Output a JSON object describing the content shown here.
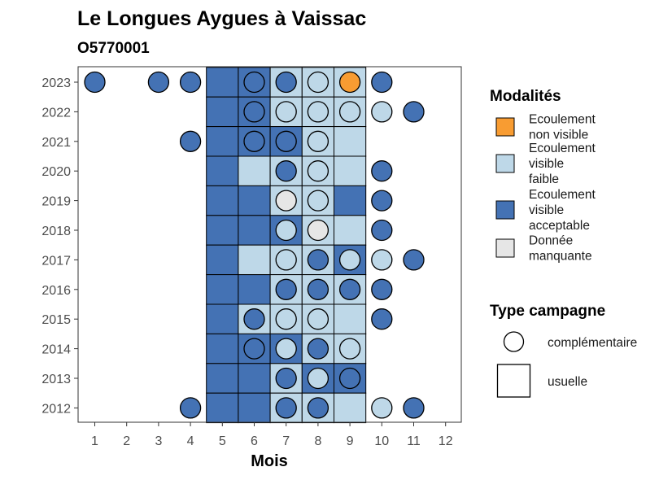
{
  "chart_data": {
    "type": "heatmap",
    "title": "Le Longues Aygues à Vaissac",
    "subtitle": "O5770001",
    "xlabel": "Mois",
    "ylabel": "",
    "x_ticks": [
      1,
      2,
      3,
      4,
      5,
      6,
      7,
      8,
      9,
      10,
      11,
      12
    ],
    "y_ticks": [
      2012,
      2013,
      2014,
      2015,
      2016,
      2017,
      2018,
      2019,
      2020,
      2021,
      2022,
      2023
    ],
    "xlim": [
      0.5,
      12.5
    ],
    "ylim": [
      2011.5,
      2023.5
    ],
    "grid": false,
    "colors": {
      "nonvisible": "#f89c32",
      "faible": "#bed8e8",
      "acceptable": "#4472b4",
      "manquante": "#e6e6e6"
    },
    "legend": {
      "placement": "right",
      "modalites_title": "Modalités",
      "modalites": [
        {
          "key": "nonvisible",
          "lines": [
            "Ecoulement",
            "non visible"
          ]
        },
        {
          "key": "faible",
          "lines": [
            "Ecoulement",
            "visible",
            "faible"
          ]
        },
        {
          "key": "acceptable",
          "lines": [
            "Ecoulement",
            "visible",
            "acceptable"
          ]
        },
        {
          "key": "manquante",
          "lines": [
            "Donnée",
            "manquante"
          ]
        }
      ],
      "campagne_title": "Type campagne",
      "campagnes": [
        {
          "key": "complementaire",
          "label": "complémentaire"
        },
        {
          "key": "usuelle",
          "label": "usuelle"
        }
      ]
    },
    "tiles": [
      {
        "year": 2023,
        "month": 5,
        "value": "acceptable"
      },
      {
        "year": 2023,
        "month": 6,
        "value": "acceptable"
      },
      {
        "year": 2023,
        "month": 7,
        "value": "faible"
      },
      {
        "year": 2023,
        "month": 8,
        "value": "faible"
      },
      {
        "year": 2023,
        "month": 9,
        "value": "faible"
      },
      {
        "year": 2022,
        "month": 5,
        "value": "acceptable"
      },
      {
        "year": 2022,
        "month": 6,
        "value": "acceptable"
      },
      {
        "year": 2022,
        "month": 7,
        "value": "faible"
      },
      {
        "year": 2022,
        "month": 8,
        "value": "faible"
      },
      {
        "year": 2022,
        "month": 9,
        "value": "faible"
      },
      {
        "year": 2021,
        "month": 5,
        "value": "acceptable"
      },
      {
        "year": 2021,
        "month": 6,
        "value": "acceptable"
      },
      {
        "year": 2021,
        "month": 7,
        "value": "acceptable"
      },
      {
        "year": 2021,
        "month": 8,
        "value": "faible"
      },
      {
        "year": 2021,
        "month": 9,
        "value": "faible"
      },
      {
        "year": 2020,
        "month": 5,
        "value": "acceptable"
      },
      {
        "year": 2020,
        "month": 6,
        "value": "faible"
      },
      {
        "year": 2020,
        "month": 7,
        "value": "faible"
      },
      {
        "year": 2020,
        "month": 8,
        "value": "faible"
      },
      {
        "year": 2020,
        "month": 9,
        "value": "faible"
      },
      {
        "year": 2019,
        "month": 5,
        "value": "acceptable"
      },
      {
        "year": 2019,
        "month": 6,
        "value": "acceptable"
      },
      {
        "year": 2019,
        "month": 7,
        "value": "faible"
      },
      {
        "year": 2019,
        "month": 8,
        "value": "faible"
      },
      {
        "year": 2019,
        "month": 9,
        "value": "acceptable"
      },
      {
        "year": 2018,
        "month": 5,
        "value": "acceptable"
      },
      {
        "year": 2018,
        "month": 6,
        "value": "acceptable"
      },
      {
        "year": 2018,
        "month": 7,
        "value": "acceptable"
      },
      {
        "year": 2018,
        "month": 8,
        "value": "faible"
      },
      {
        "year": 2018,
        "month": 9,
        "value": "faible"
      },
      {
        "year": 2017,
        "month": 5,
        "value": "acceptable"
      },
      {
        "year": 2017,
        "month": 6,
        "value": "faible"
      },
      {
        "year": 2017,
        "month": 7,
        "value": "faible"
      },
      {
        "year": 2017,
        "month": 8,
        "value": "faible"
      },
      {
        "year": 2017,
        "month": 9,
        "value": "acceptable"
      },
      {
        "year": 2016,
        "month": 5,
        "value": "acceptable"
      },
      {
        "year": 2016,
        "month": 6,
        "value": "acceptable"
      },
      {
        "year": 2016,
        "month": 7,
        "value": "faible"
      },
      {
        "year": 2016,
        "month": 8,
        "value": "faible"
      },
      {
        "year": 2016,
        "month": 9,
        "value": "faible"
      },
      {
        "year": 2015,
        "month": 5,
        "value": "acceptable"
      },
      {
        "year": 2015,
        "month": 6,
        "value": "faible"
      },
      {
        "year": 2015,
        "month": 7,
        "value": "faible"
      },
      {
        "year": 2015,
        "month": 8,
        "value": "faible"
      },
      {
        "year": 2015,
        "month": 9,
        "value": "faible"
      },
      {
        "year": 2014,
        "month": 5,
        "value": "acceptable"
      },
      {
        "year": 2014,
        "month": 6,
        "value": "acceptable"
      },
      {
        "year": 2014,
        "month": 7,
        "value": "acceptable"
      },
      {
        "year": 2014,
        "month": 8,
        "value": "faible"
      },
      {
        "year": 2014,
        "month": 9,
        "value": "faible"
      },
      {
        "year": 2013,
        "month": 5,
        "value": "acceptable"
      },
      {
        "year": 2013,
        "month": 6,
        "value": "acceptable"
      },
      {
        "year": 2013,
        "month": 7,
        "value": "faible"
      },
      {
        "year": 2013,
        "month": 8,
        "value": "acceptable"
      },
      {
        "year": 2013,
        "month": 9,
        "value": "acceptable"
      },
      {
        "year": 2012,
        "month": 5,
        "value": "acceptable"
      },
      {
        "year": 2012,
        "month": 6,
        "value": "acceptable"
      },
      {
        "year": 2012,
        "month": 7,
        "value": "faible"
      },
      {
        "year": 2012,
        "month": 8,
        "value": "faible"
      },
      {
        "year": 2012,
        "month": 9,
        "value": "faible"
      }
    ],
    "points": [
      {
        "year": 2023,
        "month": 1,
        "value": "acceptable"
      },
      {
        "year": 2023,
        "month": 3,
        "value": "acceptable"
      },
      {
        "year": 2023,
        "month": 4,
        "value": "acceptable"
      },
      {
        "year": 2023,
        "month": 6,
        "value": "acceptable"
      },
      {
        "year": 2023,
        "month": 7,
        "value": "acceptable"
      },
      {
        "year": 2023,
        "month": 8,
        "value": "faible"
      },
      {
        "year": 2023,
        "month": 9,
        "value": "nonvisible"
      },
      {
        "year": 2023,
        "month": 10,
        "value": "acceptable"
      },
      {
        "year": 2022,
        "month": 6,
        "value": "acceptable"
      },
      {
        "year": 2022,
        "month": 7,
        "value": "faible"
      },
      {
        "year": 2022,
        "month": 8,
        "value": "faible"
      },
      {
        "year": 2022,
        "month": 9,
        "value": "faible"
      },
      {
        "year": 2022,
        "month": 10,
        "value": "faible"
      },
      {
        "year": 2022,
        "month": 11,
        "value": "acceptable"
      },
      {
        "year": 2021,
        "month": 4,
        "value": "acceptable"
      },
      {
        "year": 2021,
        "month": 6,
        "value": "acceptable"
      },
      {
        "year": 2021,
        "month": 7,
        "value": "acceptable"
      },
      {
        "year": 2021,
        "month": 8,
        "value": "faible"
      },
      {
        "year": 2020,
        "month": 7,
        "value": "acceptable"
      },
      {
        "year": 2020,
        "month": 8,
        "value": "faible"
      },
      {
        "year": 2020,
        "month": 10,
        "value": "acceptable"
      },
      {
        "year": 2019,
        "month": 7,
        "value": "manquante"
      },
      {
        "year": 2019,
        "month": 8,
        "value": "faible"
      },
      {
        "year": 2019,
        "month": 10,
        "value": "acceptable"
      },
      {
        "year": 2018,
        "month": 7,
        "value": "faible"
      },
      {
        "year": 2018,
        "month": 8,
        "value": "manquante"
      },
      {
        "year": 2018,
        "month": 10,
        "value": "acceptable"
      },
      {
        "year": 2017,
        "month": 7,
        "value": "faible"
      },
      {
        "year": 2017,
        "month": 8,
        "value": "acceptable"
      },
      {
        "year": 2017,
        "month": 9,
        "value": "faible"
      },
      {
        "year": 2017,
        "month": 10,
        "value": "faible"
      },
      {
        "year": 2017,
        "month": 11,
        "value": "acceptable"
      },
      {
        "year": 2016,
        "month": 7,
        "value": "acceptable"
      },
      {
        "year": 2016,
        "month": 8,
        "value": "acceptable"
      },
      {
        "year": 2016,
        "month": 9,
        "value": "acceptable"
      },
      {
        "year": 2016,
        "month": 10,
        "value": "acceptable"
      },
      {
        "year": 2015,
        "month": 6,
        "value": "acceptable"
      },
      {
        "year": 2015,
        "month": 7,
        "value": "faible"
      },
      {
        "year": 2015,
        "month": 8,
        "value": "faible"
      },
      {
        "year": 2015,
        "month": 10,
        "value": "acceptable"
      },
      {
        "year": 2014,
        "month": 6,
        "value": "acceptable"
      },
      {
        "year": 2014,
        "month": 7,
        "value": "faible"
      },
      {
        "year": 2014,
        "month": 8,
        "value": "acceptable"
      },
      {
        "year": 2014,
        "month": 9,
        "value": "faible"
      },
      {
        "year": 2013,
        "month": 7,
        "value": "acceptable"
      },
      {
        "year": 2013,
        "month": 8,
        "value": "faible"
      },
      {
        "year": 2013,
        "month": 9,
        "value": "acceptable"
      },
      {
        "year": 2012,
        "month": 4,
        "value": "acceptable"
      },
      {
        "year": 2012,
        "month": 7,
        "value": "acceptable"
      },
      {
        "year": 2012,
        "month": 8,
        "value": "acceptable"
      },
      {
        "year": 2012,
        "month": 10,
        "value": "faible"
      },
      {
        "year": 2012,
        "month": 11,
        "value": "acceptable"
      }
    ]
  }
}
